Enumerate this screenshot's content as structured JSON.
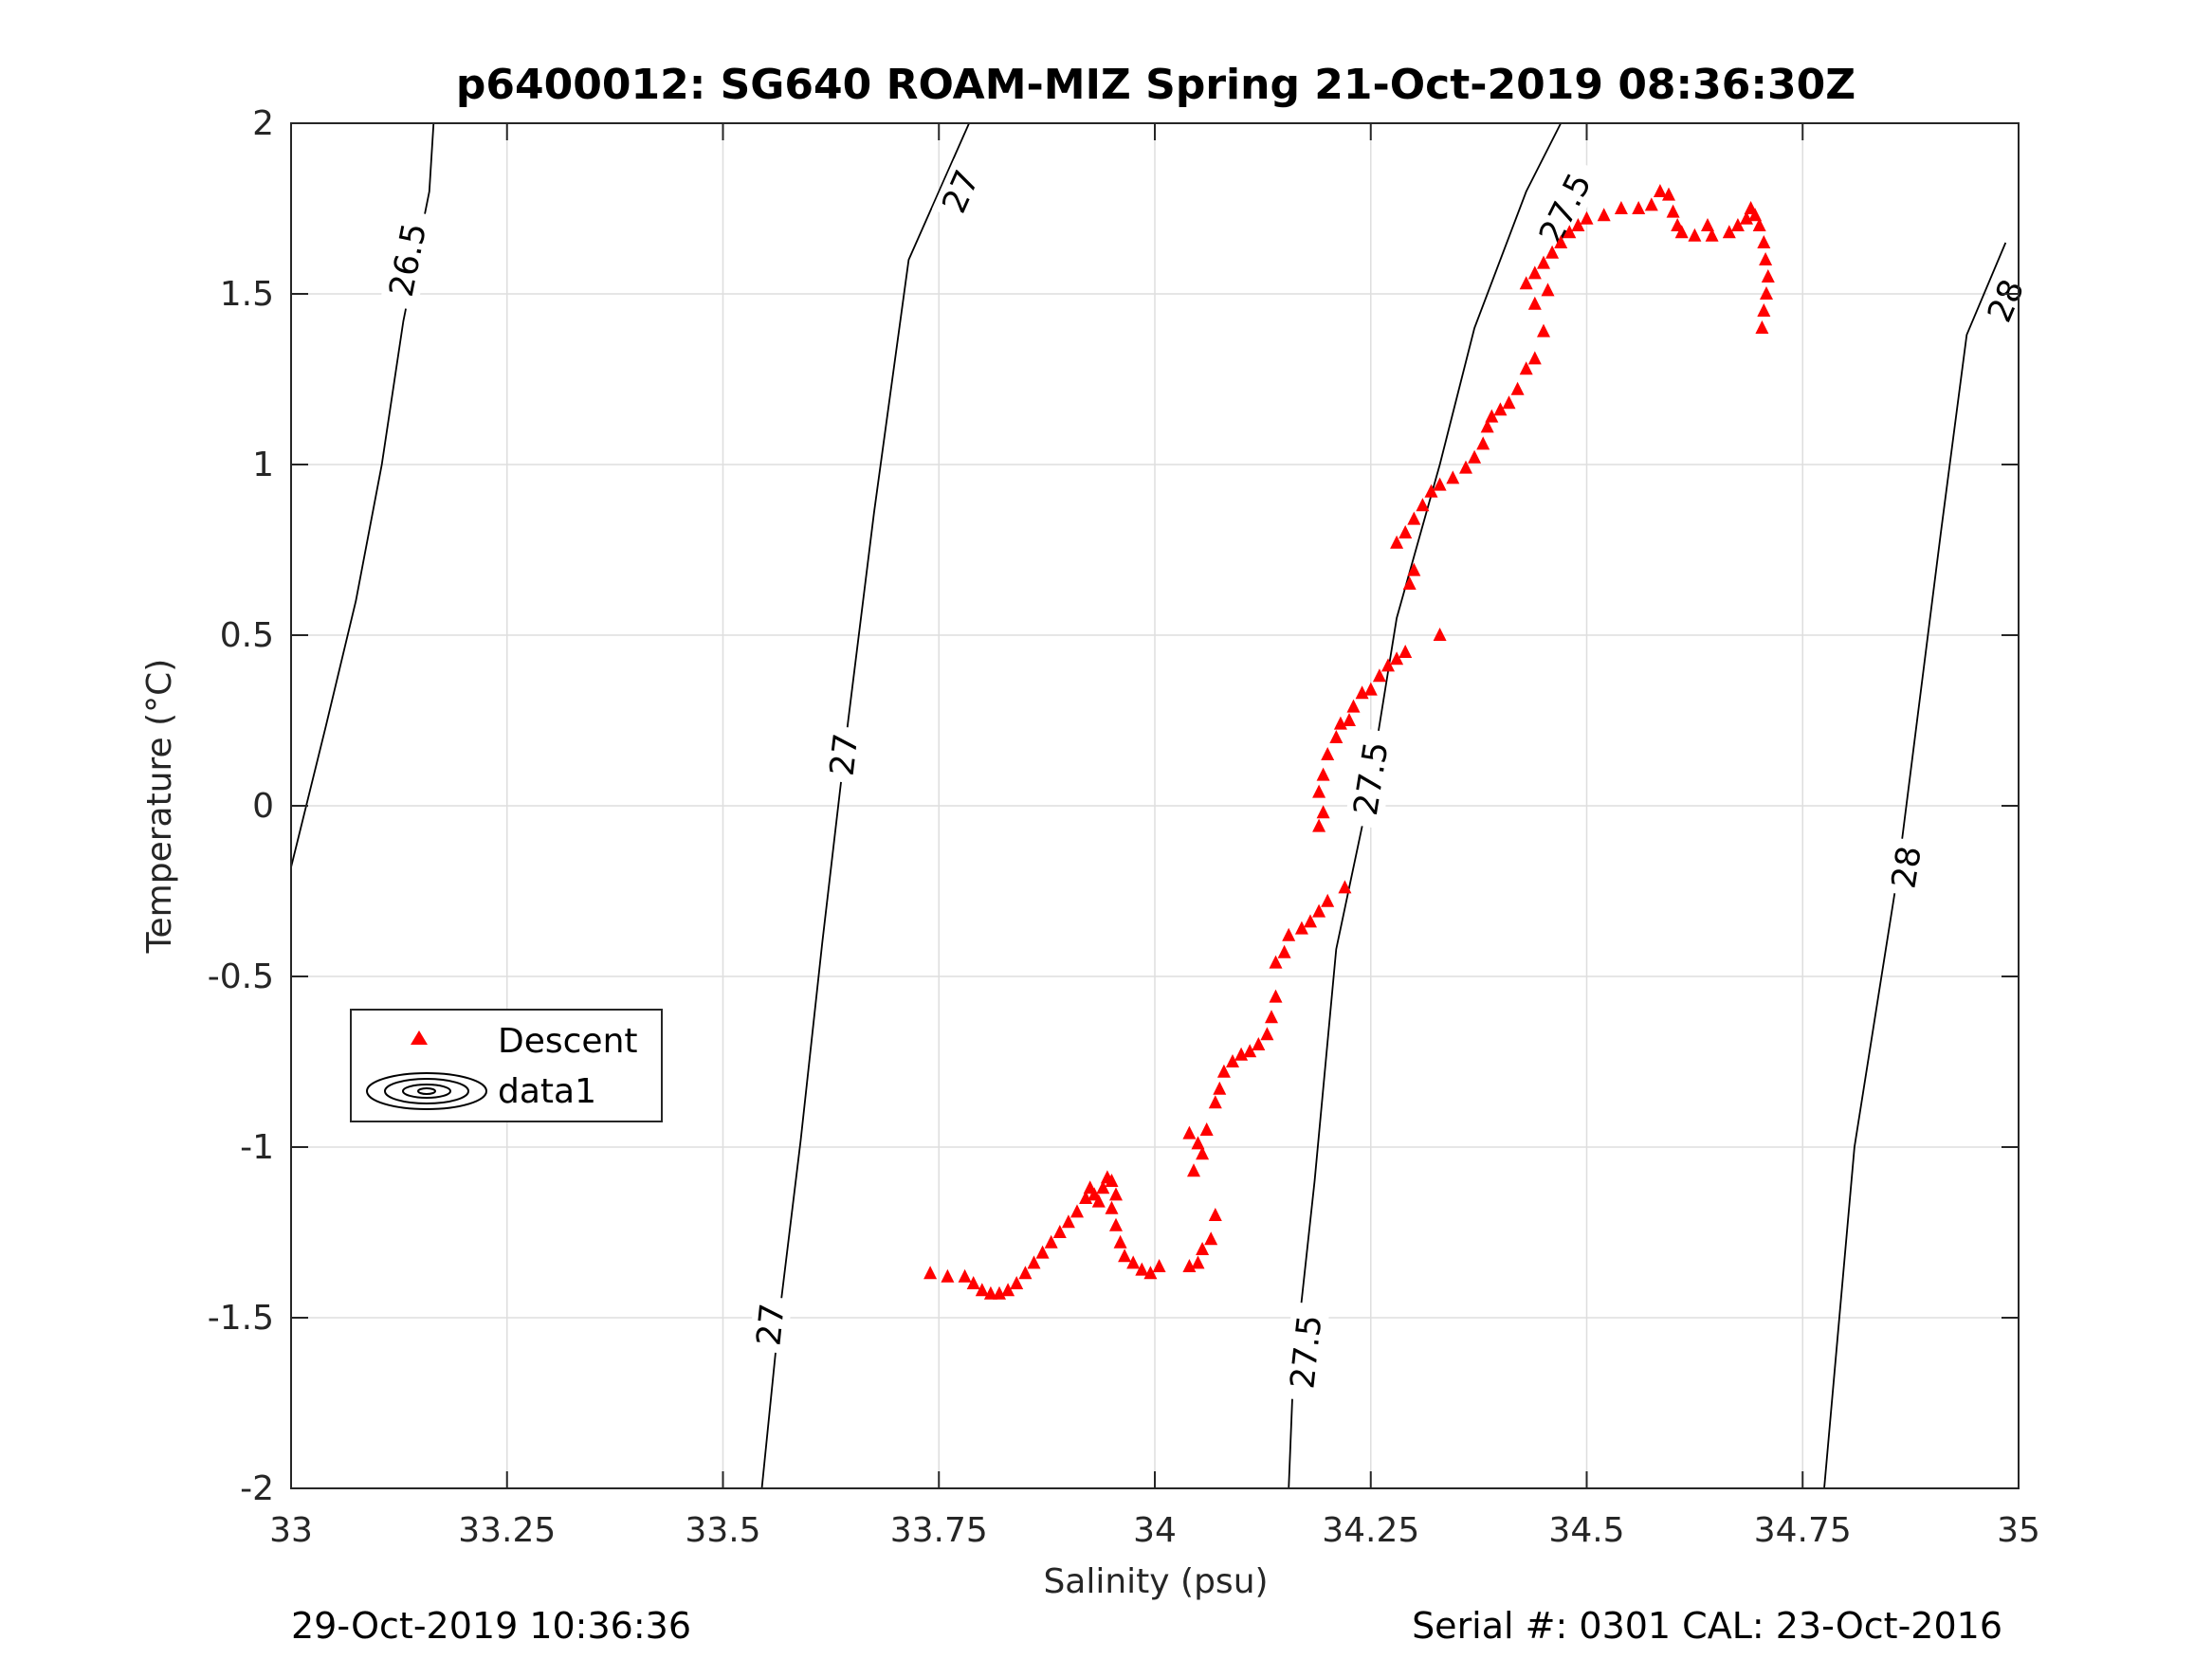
{
  "chart_data": {
    "type": "scatter",
    "title": "p6400012: SG640 ROAM-MIZ Spring 21-Oct-2019 08:36:30Z",
    "xlabel": "Salinity (psu)",
    "ylabel": "Temperature (°C)",
    "xlim": [
      33,
      35
    ],
    "ylim": [
      -2,
      2
    ],
    "xticks": [
      33,
      33.25,
      33.5,
      33.75,
      34,
      34.25,
      34.5,
      34.75,
      35
    ],
    "xtick_labels": [
      "33",
      "33.25",
      "33.5",
      "33.75",
      "34",
      "34.25",
      "34.5",
      "34.75",
      "35"
    ],
    "yticks": [
      -2,
      -1.5,
      -1,
      -0.5,
      0,
      0.5,
      1,
      1.5,
      2
    ],
    "ytick_labels": [
      "-2",
      "-1.5",
      "-1",
      "-0.5",
      "0",
      "0.5",
      "1",
      "1.5",
      "2"
    ],
    "grid": true,
    "legend_position": "lower-left",
    "legend": [
      "Descent",
      "data1"
    ],
    "marker_color": "#ff0000",
    "series": [
      {
        "name": "Descent",
        "marker": "triangle",
        "color": "#ff0000",
        "points": [
          [
            33.74,
            -1.37
          ],
          [
            33.76,
            -1.38
          ],
          [
            33.78,
            -1.38
          ],
          [
            33.79,
            -1.4
          ],
          [
            33.8,
            -1.42
          ],
          [
            33.81,
            -1.43
          ],
          [
            33.82,
            -1.43
          ],
          [
            33.83,
            -1.42
          ],
          [
            33.84,
            -1.4
          ],
          [
            33.85,
            -1.37
          ],
          [
            33.86,
            -1.34
          ],
          [
            33.87,
            -1.31
          ],
          [
            33.88,
            -1.28
          ],
          [
            33.89,
            -1.25
          ],
          [
            33.9,
            -1.22
          ],
          [
            33.91,
            -1.19
          ],
          [
            33.92,
            -1.15
          ],
          [
            33.925,
            -1.12
          ],
          [
            33.93,
            -1.14
          ],
          [
            33.935,
            -1.16
          ],
          [
            33.94,
            -1.12
          ],
          [
            33.945,
            -1.09
          ],
          [
            33.95,
            -1.1
          ],
          [
            33.955,
            -1.14
          ],
          [
            33.95,
            -1.18
          ],
          [
            33.955,
            -1.23
          ],
          [
            33.96,
            -1.28
          ],
          [
            33.965,
            -1.32
          ],
          [
            33.975,
            -1.34
          ],
          [
            33.985,
            -1.36
          ],
          [
            33.995,
            -1.37
          ],
          [
            34.005,
            -1.35
          ],
          [
            34.04,
            -1.35
          ],
          [
            34.05,
            -1.34
          ],
          [
            34.055,
            -1.3
          ],
          [
            34.065,
            -1.27
          ],
          [
            34.07,
            -1.2
          ],
          [
            34.04,
            -0.96
          ],
          [
            34.05,
            -0.99
          ],
          [
            34.055,
            -1.02
          ],
          [
            34.045,
            -1.07
          ],
          [
            34.06,
            -0.95
          ],
          [
            34.07,
            -0.87
          ],
          [
            34.075,
            -0.83
          ],
          [
            34.08,
            -0.78
          ],
          [
            34.09,
            -0.75
          ],
          [
            34.1,
            -0.73
          ],
          [
            34.11,
            -0.72
          ],
          [
            34.12,
            -0.7
          ],
          [
            34.13,
            -0.67
          ],
          [
            34.135,
            -0.62
          ],
          [
            34.14,
            -0.56
          ],
          [
            34.14,
            -0.46
          ],
          [
            34.15,
            -0.43
          ],
          [
            34.155,
            -0.38
          ],
          [
            34.17,
            -0.36
          ],
          [
            34.18,
            -0.34
          ],
          [
            34.19,
            -0.31
          ],
          [
            34.2,
            -0.28
          ],
          [
            34.22,
            -0.24
          ],
          [
            34.19,
            -0.06
          ],
          [
            34.195,
            -0.02
          ],
          [
            34.19,
            0.04
          ],
          [
            34.195,
            0.09
          ],
          [
            34.2,
            0.15
          ],
          [
            34.21,
            0.2
          ],
          [
            34.215,
            0.24
          ],
          [
            34.225,
            0.25
          ],
          [
            34.23,
            0.29
          ],
          [
            34.24,
            0.33
          ],
          [
            34.25,
            0.34
          ],
          [
            34.26,
            0.38
          ],
          [
            34.27,
            0.41
          ],
          [
            34.28,
            0.43
          ],
          [
            34.29,
            0.45
          ],
          [
            34.33,
            0.5
          ],
          [
            34.295,
            0.65
          ],
          [
            34.3,
            0.69
          ],
          [
            34.28,
            0.77
          ],
          [
            34.29,
            0.8
          ],
          [
            34.3,
            0.84
          ],
          [
            34.31,
            0.88
          ],
          [
            34.32,
            0.92
          ],
          [
            34.33,
            0.94
          ],
          [
            34.345,
            0.96
          ],
          [
            34.36,
            0.99
          ],
          [
            34.37,
            1.02
          ],
          [
            34.38,
            1.06
          ],
          [
            34.385,
            1.11
          ],
          [
            34.39,
            1.14
          ],
          [
            34.4,
            1.16
          ],
          [
            34.41,
            1.18
          ],
          [
            34.42,
            1.22
          ],
          [
            34.43,
            1.28
          ],
          [
            34.44,
            1.31
          ],
          [
            34.45,
            1.39
          ],
          [
            34.44,
            1.47
          ],
          [
            34.455,
            1.51
          ],
          [
            34.43,
            1.53
          ],
          [
            34.44,
            1.56
          ],
          [
            34.45,
            1.59
          ],
          [
            34.46,
            1.62
          ],
          [
            34.47,
            1.65
          ],
          [
            34.48,
            1.68
          ],
          [
            34.49,
            1.7
          ],
          [
            34.5,
            1.72
          ],
          [
            34.52,
            1.73
          ],
          [
            34.54,
            1.75
          ],
          [
            34.56,
            1.75
          ],
          [
            34.575,
            1.76
          ],
          [
            34.585,
            1.8
          ],
          [
            34.595,
            1.79
          ],
          [
            34.6,
            1.74
          ],
          [
            34.605,
            1.7
          ],
          [
            34.61,
            1.68
          ],
          [
            34.625,
            1.67
          ],
          [
            34.64,
            1.7
          ],
          [
            34.645,
            1.67
          ],
          [
            34.665,
            1.68
          ],
          [
            34.675,
            1.7
          ],
          [
            34.685,
            1.72
          ],
          [
            34.69,
            1.75
          ],
          [
            34.695,
            1.73
          ],
          [
            34.7,
            1.7
          ],
          [
            34.705,
            1.65
          ],
          [
            34.707,
            1.6
          ],
          [
            34.71,
            1.55
          ],
          [
            34.708,
            1.5
          ],
          [
            34.705,
            1.45
          ],
          [
            34.703,
            1.4
          ]
        ]
      }
    ],
    "contours": [
      {
        "label": "26.5",
        "points": [
          [
            33.0,
            -0.18
          ],
          [
            33.04,
            0.23
          ],
          [
            33.075,
            0.6
          ],
          [
            33.105,
            1.0
          ],
          [
            33.13,
            1.42
          ],
          [
            33.16,
            1.8
          ],
          [
            33.165,
            2.0
          ]
        ],
        "label_positions": [
          [
            33.135,
            1.6
          ]
        ]
      },
      {
        "label": "27",
        "points": [
          [
            33.545,
            -2.0
          ],
          [
            33.565,
            -1.5
          ],
          [
            33.59,
            -0.98
          ],
          [
            33.615,
            -0.4
          ],
          [
            33.645,
            0.25
          ],
          [
            33.675,
            0.86
          ],
          [
            33.715,
            1.6
          ],
          [
            33.785,
            2.0
          ]
        ],
        "label_positions": [
          [
            33.555,
            -1.52
          ],
          [
            33.64,
            0.15
          ],
          [
            33.775,
            1.8
          ]
        ]
      },
      {
        "label": "27.5",
        "points": [
          [
            34.155,
            -2.0
          ],
          [
            34.16,
            -1.68
          ],
          [
            34.185,
            -1.1
          ],
          [
            34.21,
            -0.42
          ],
          [
            34.245,
            0.0
          ],
          [
            34.28,
            0.55
          ],
          [
            34.33,
            1.0
          ],
          [
            34.37,
            1.4
          ],
          [
            34.43,
            1.8
          ],
          [
            34.47,
            2.0
          ]
        ],
        "label_positions": [
          [
            34.175,
            -1.6
          ],
          [
            34.25,
            0.08
          ],
          [
            34.475,
            1.75
          ]
        ]
      },
      {
        "label": "28",
        "points": [
          [
            34.775,
            -2.0
          ],
          [
            34.81,
            -1.0
          ],
          [
            34.86,
            -0.2
          ],
          [
            34.91,
            0.8
          ],
          [
            34.94,
            1.38
          ],
          [
            34.985,
            1.65
          ]
        ],
        "label_positions": [
          [
            34.87,
            -0.18
          ],
          [
            34.985,
            1.48
          ]
        ]
      }
    ],
    "footer_left": "29-Oct-2019 10:36:36",
    "footer_right": "Serial #: 0301  CAL: 23-Oct-2016"
  }
}
